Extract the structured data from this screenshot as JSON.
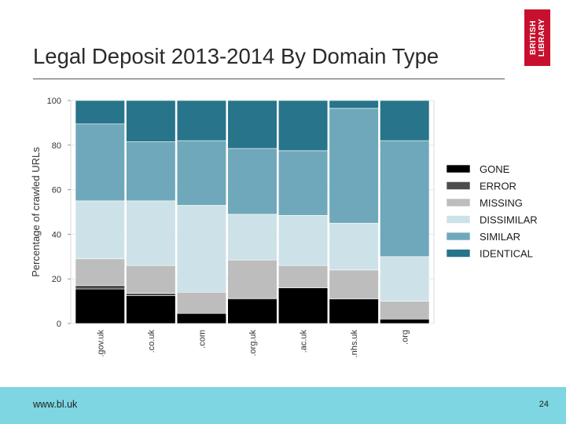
{
  "slide": {
    "title": "Legal Deposit 2013-2014 By Domain Type",
    "logo_line1": "BRITISH",
    "logo_line2": "LIBRARY",
    "footer_url": "www.bl.uk",
    "page_number": "24"
  },
  "colors": {
    "logo": "#c8102e",
    "footer": "#7dd6e1",
    "gone": "#000000",
    "error": "#4d4d4d",
    "missing": "#bdbdbd",
    "dissimilar": "#cde2e8",
    "similar": "#6ea8ba",
    "identical": "#27748b"
  },
  "chart_data": {
    "type": "bar",
    "stacked": true,
    "title": "",
    "xlabel": "",
    "ylabel": "Percentage of crawled URLs",
    "ylim": [
      0,
      100
    ],
    "yticks": [
      0,
      20,
      40,
      60,
      80,
      100
    ],
    "grid": true,
    "legend_position": "right",
    "categories": [
      ".gov.uk",
      ".co.uk",
      ".com",
      ".org.uk",
      ".ac.uk",
      ".nhs.uk",
      ".org"
    ],
    "series": [
      {
        "name": "GONE",
        "color": "#000000",
        "values": [
          15.5,
          12.5,
          4.5,
          11,
          16,
          11,
          2
        ]
      },
      {
        "name": "ERROR",
        "color": "#4d4d4d",
        "values": [
          1.5,
          1,
          0,
          0.5,
          0,
          0,
          0
        ]
      },
      {
        "name": "MISSING",
        "color": "#bdbdbd",
        "values": [
          12,
          12.5,
          9.5,
          17,
          10,
          13,
          8
        ]
      },
      {
        "name": "DISSIMILAR",
        "color": "#cde2e8",
        "values": [
          26,
          29,
          39,
          20.5,
          22.5,
          21,
          20
        ]
      },
      {
        "name": "SIMILAR",
        "color": "#6ea8ba",
        "values": [
          34.5,
          26.5,
          29,
          29.5,
          29,
          51.5,
          52
        ]
      },
      {
        "name": "IDENTICAL",
        "color": "#27748b",
        "values": [
          10.5,
          18.5,
          18,
          21.5,
          22.5,
          3.5,
          18
        ]
      }
    ]
  }
}
